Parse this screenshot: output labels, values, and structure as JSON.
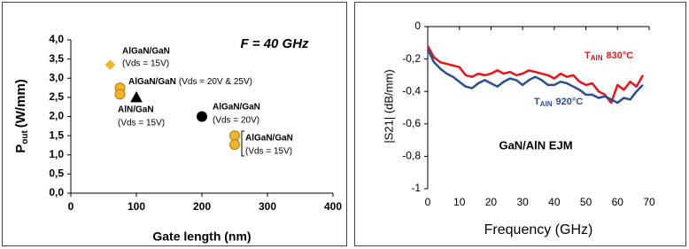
{
  "chart_data": [
    {
      "type": "scatter",
      "title": "F = 40 GHz",
      "x_label": "Gate length (nm)",
      "y_label": {
        "text": "P",
        "sub": "out",
        "rest": "(W/mm)"
      },
      "xlim": [
        0,
        400
      ],
      "xticks": [
        0,
        100,
        200,
        300,
        400
      ],
      "ylim": [
        0,
        4
      ],
      "yticks": [
        {
          "value": 0,
          "label": "0,0"
        },
        {
          "value": 0.5,
          "label": "0,5"
        },
        {
          "value": 1,
          "label": "1,0"
        },
        {
          "value": 1.5,
          "label": "1,5"
        },
        {
          "value": 2,
          "label": "2,0"
        },
        {
          "value": 2.5,
          "label": "2,5"
        },
        {
          "value": 3,
          "label": "3,0"
        },
        {
          "value": 3.5,
          "label": "3,5"
        },
        {
          "value": 4,
          "label": "4,0"
        }
      ],
      "series": [
        {
          "marker": "diamond",
          "color": "#f0b429",
          "x": [
            60
          ],
          "values": [
            3.35
          ]
        },
        {
          "marker": "circle",
          "color": "#f0b429",
          "x": [
            75,
            75
          ],
          "values": [
            2.75,
            2.58
          ]
        },
        {
          "marker": "triangle",
          "color": "#000000",
          "x": [
            100
          ],
          "values": [
            2.5
          ]
        },
        {
          "marker": "circle",
          "color": "#000000",
          "x": [
            200
          ],
          "values": [
            2.0
          ]
        },
        {
          "marker": "circle",
          "color": "#f0b429",
          "x": [
            250,
            250
          ],
          "values": [
            1.5,
            1.27
          ]
        }
      ],
      "annotations": [
        {
          "lines": [
            "AlGaN/GaN",
            "(Vds = 15V)"
          ]
        },
        {
          "lines": [
            "AlGaN/GaN",
            "(Vds = 20V & 25V)"
          ]
        },
        {
          "lines": [
            "AlN/GaN",
            "(Vds = 15V)"
          ]
        },
        {
          "lines": [
            "AlGaN/GaN",
            "(Vds = 20V)"
          ]
        },
        {
          "lines": [
            "AlGaN/GaN",
            "(Vds = 15V)"
          ]
        }
      ]
    },
    {
      "type": "line",
      "x_label": "Frequency (GHz)",
      "y_label": "|S21| (dB/mm)",
      "annotation": "GaN/AlN EJM",
      "xlim": [
        0,
        70
      ],
      "xticks": [
        0,
        10,
        20,
        30,
        40,
        50,
        60,
        70
      ],
      "ylim": [
        -1,
        0
      ],
      "yticks": [
        0,
        {
          "value": -0.2,
          "label": "-0,2"
        },
        {
          "value": -0.4,
          "label": "-0,4"
        },
        {
          "value": -0.6,
          "label": "-0,6"
        },
        {
          "value": -0.8,
          "label": "-0,8"
        },
        -1
      ],
      "x": [
        0,
        2,
        4,
        6,
        8,
        10,
        12,
        14,
        16,
        18,
        20,
        22,
        24,
        26,
        28,
        30,
        32,
        34,
        36,
        38,
        40,
        42,
        44,
        46,
        48,
        50,
        52,
        54,
        56,
        58,
        60,
        62,
        64,
        66,
        68
      ],
      "series": [
        {
          "color": "#e8141c",
          "label": {
            "text": "T",
            "sub": "AlN",
            "rest": "830°C"
          },
          "values": [
            -0.12,
            -0.19,
            -0.22,
            -0.23,
            -0.24,
            -0.25,
            -0.3,
            -0.31,
            -0.29,
            -0.3,
            -0.29,
            -0.27,
            -0.29,
            -0.28,
            -0.3,
            -0.29,
            -0.27,
            -0.28,
            -0.29,
            -0.3,
            -0.32,
            -0.29,
            -0.31,
            -0.3,
            -0.34,
            -0.36,
            -0.35,
            -0.4,
            -0.42,
            -0.47,
            -0.36,
            -0.39,
            -0.34,
            -0.37,
            -0.3
          ]
        },
        {
          "color": "#2e4f8e",
          "label": {
            "text": "T",
            "sub": "AlN",
            "rest": "920°C"
          },
          "values": [
            -0.14,
            -0.22,
            -0.26,
            -0.29,
            -0.31,
            -0.34,
            -0.37,
            -0.38,
            -0.35,
            -0.33,
            -0.35,
            -0.37,
            -0.34,
            -0.32,
            -0.33,
            -0.36,
            -0.33,
            -0.31,
            -0.33,
            -0.36,
            -0.36,
            -0.34,
            -0.35,
            -0.37,
            -0.39,
            -0.42,
            -0.42,
            -0.44,
            -0.43,
            -0.45,
            -0.47,
            -0.44,
            -0.45,
            -0.4,
            -0.36
          ]
        }
      ]
    }
  ]
}
